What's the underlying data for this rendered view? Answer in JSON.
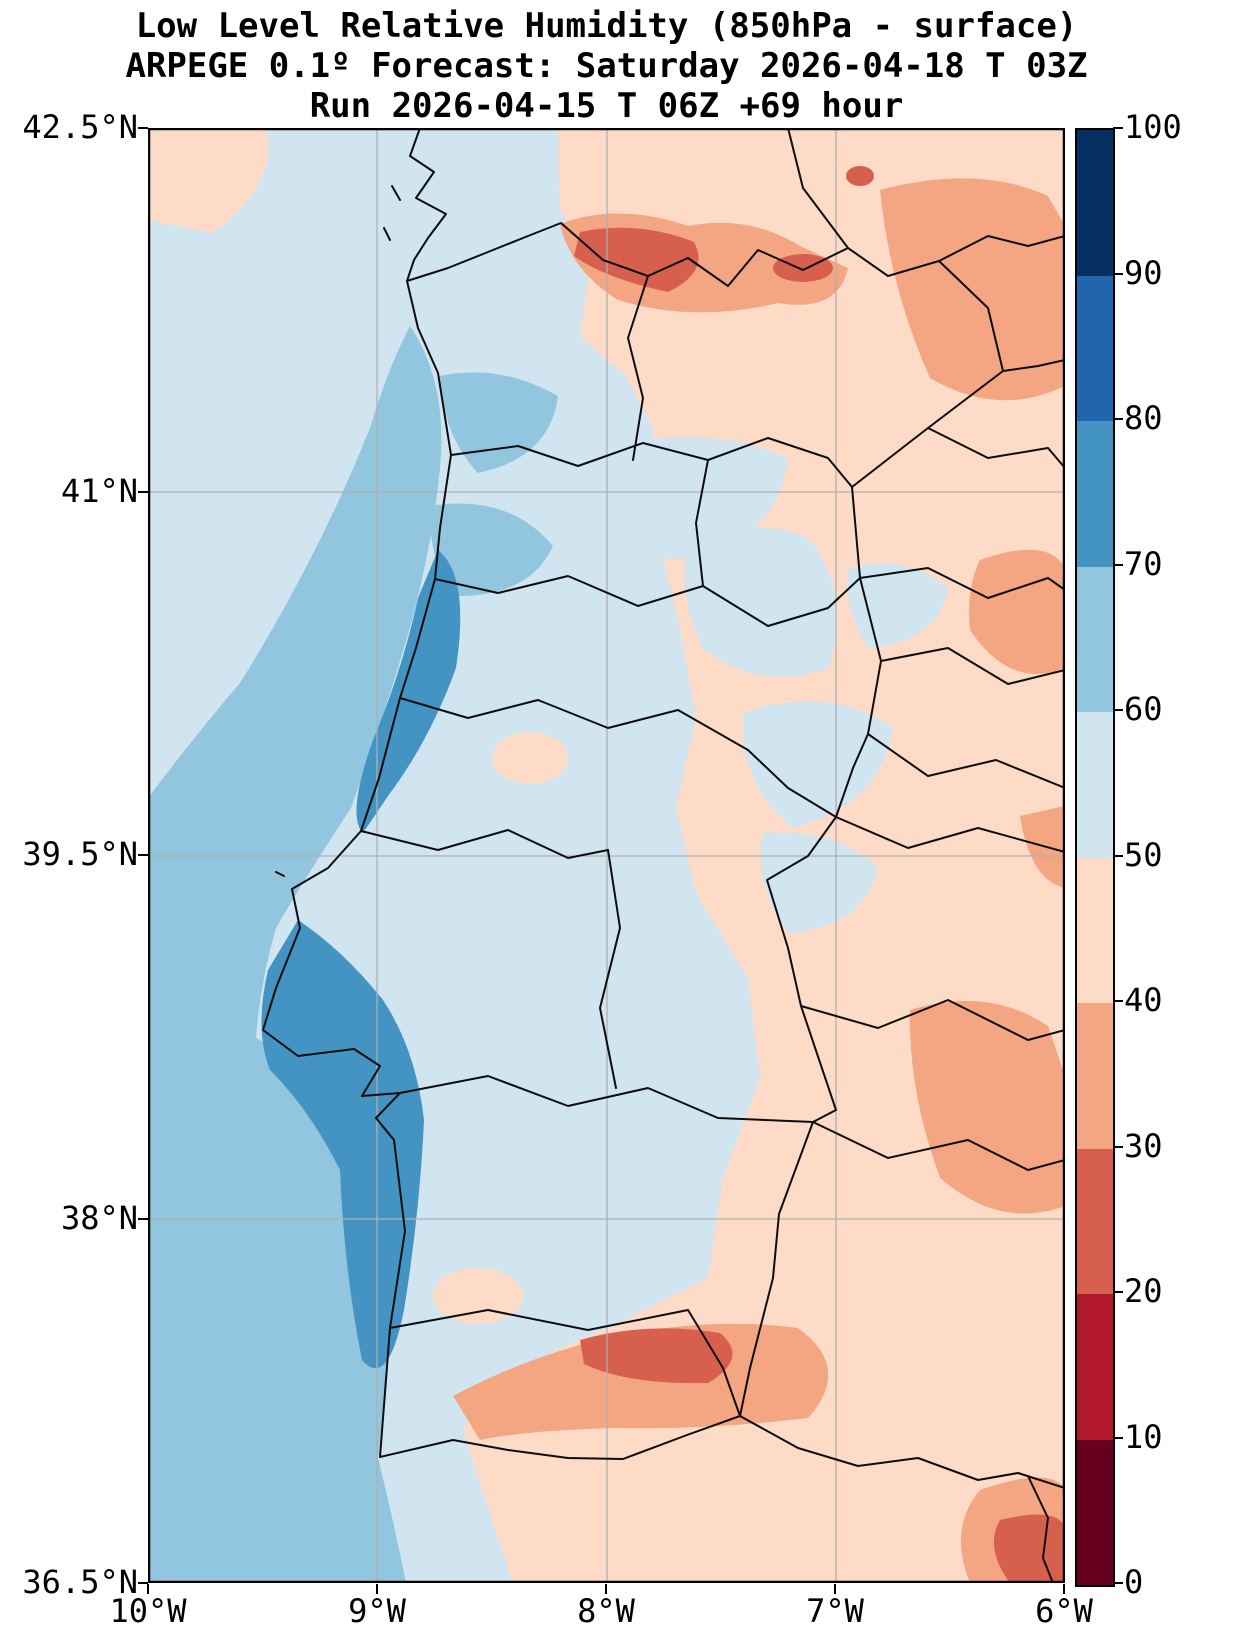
{
  "title": {
    "line1": "Low Level Relative Humidity (850hPa - surface)",
    "line2": "ARPEGE 0.1º Forecast: Saturday 2026-04-18 T 03Z",
    "line3": "Run 2026-04-15 T 06Z +69 hour"
  },
  "axes": {
    "y_ticks": [
      "42.5°N",
      "41°N",
      "39.5°N",
      "38°N",
      "36.5°N"
    ],
    "x_ticks": [
      "10°W",
      "9°W",
      "8°W",
      "7°W",
      "6°W"
    ]
  },
  "colorbar": {
    "ticks": [
      "100",
      "90",
      "80",
      "70",
      "60",
      "50",
      "40",
      "30",
      "20",
      "10",
      "0"
    ],
    "colors": [
      "#053061",
      "#2166ac",
      "#4393c3",
      "#92c5de",
      "#d1e5f0",
      "#fddbc7",
      "#f4a582",
      "#d6604d",
      "#b2182b",
      "#67001f"
    ]
  },
  "chart_data": {
    "type": "heatmap",
    "title": "Low Level Relative Humidity (850hPa - surface)",
    "model": "ARPEGE 0.1º",
    "valid_time": "Saturday 2026-04-18 T 03Z",
    "run_time": "2026-04-15 T 06Z",
    "lead_time": "+69 hour",
    "variable": "relative humidity (%)",
    "xlabel_ticks": [
      "10°W",
      "9°W",
      "8°W",
      "7°W",
      "6°W"
    ],
    "ylabel_ticks": [
      "42.5°N",
      "41°N",
      "39.5°N",
      "38°N",
      "36.5°N"
    ],
    "lon_range_deg": [
      -10,
      -6
    ],
    "lat_range_deg": [
      36.5,
      42.5
    ],
    "grid": true,
    "colorbar": {
      "range": [
        0,
        100
      ],
      "interval": 10,
      "tick_labels": [
        "100",
        "90",
        "80",
        "70",
        "60",
        "50",
        "40",
        "30",
        "20",
        "10",
        "0"
      ],
      "palette_name": "RdBu",
      "segment_colors_top_to_bottom": [
        "#053061",
        "#2166ac",
        "#4393c3",
        "#92c5de",
        "#d1e5f0",
        "#fddbc7",
        "#f4a582",
        "#d6604d",
        "#b2182b",
        "#67001f"
      ]
    },
    "features": [
      {
        "region": "Atlantic nearshore band off central Portugal coast (≈9.3°W, 38°N–40.4°N)",
        "rh_percent": "70-80"
      },
      {
        "region": "Broad offshore Atlantic band, southwest quadrant of map",
        "rh_percent": "60-70"
      },
      {
        "region": "Far offshore northwest and top-left ocean",
        "rh_percent": "50-60"
      },
      {
        "region": "Small peach patch at extreme top-left corner of ocean",
        "rh_percent": "40-50"
      },
      {
        "region": "Coastal and central-western Portugal land areas",
        "rh_percent": "50-60"
      },
      {
        "region": "Interior light-blue pockets near Porto/Aveiro and central Portugal",
        "rh_percent": "50-70"
      },
      {
        "region": "Eastern Portugal and western Spain (most land east of ~7.7°W)",
        "rh_percent": "40-50"
      },
      {
        "region": "Dry band across northern Portugal/Spain border (~41.9°N, 8.4–7.2°W)",
        "rh_percent": "20-40"
      },
      {
        "region": "Northeast corner patches in Spain",
        "rh_percent": "30-40"
      },
      {
        "region": "East-central Spain edge patches (~40°N and ~38.5°N at 6°W)",
        "rh_percent": "30-40"
      },
      {
        "region": "Algarve interior dry band (~37.3°N, 8.5–7.2°W)",
        "rh_percent": "20-40"
      },
      {
        "region": "Bottom-right corner near 36.6°N 6.2°W",
        "rh_percent": "20-30"
      }
    ]
  }
}
